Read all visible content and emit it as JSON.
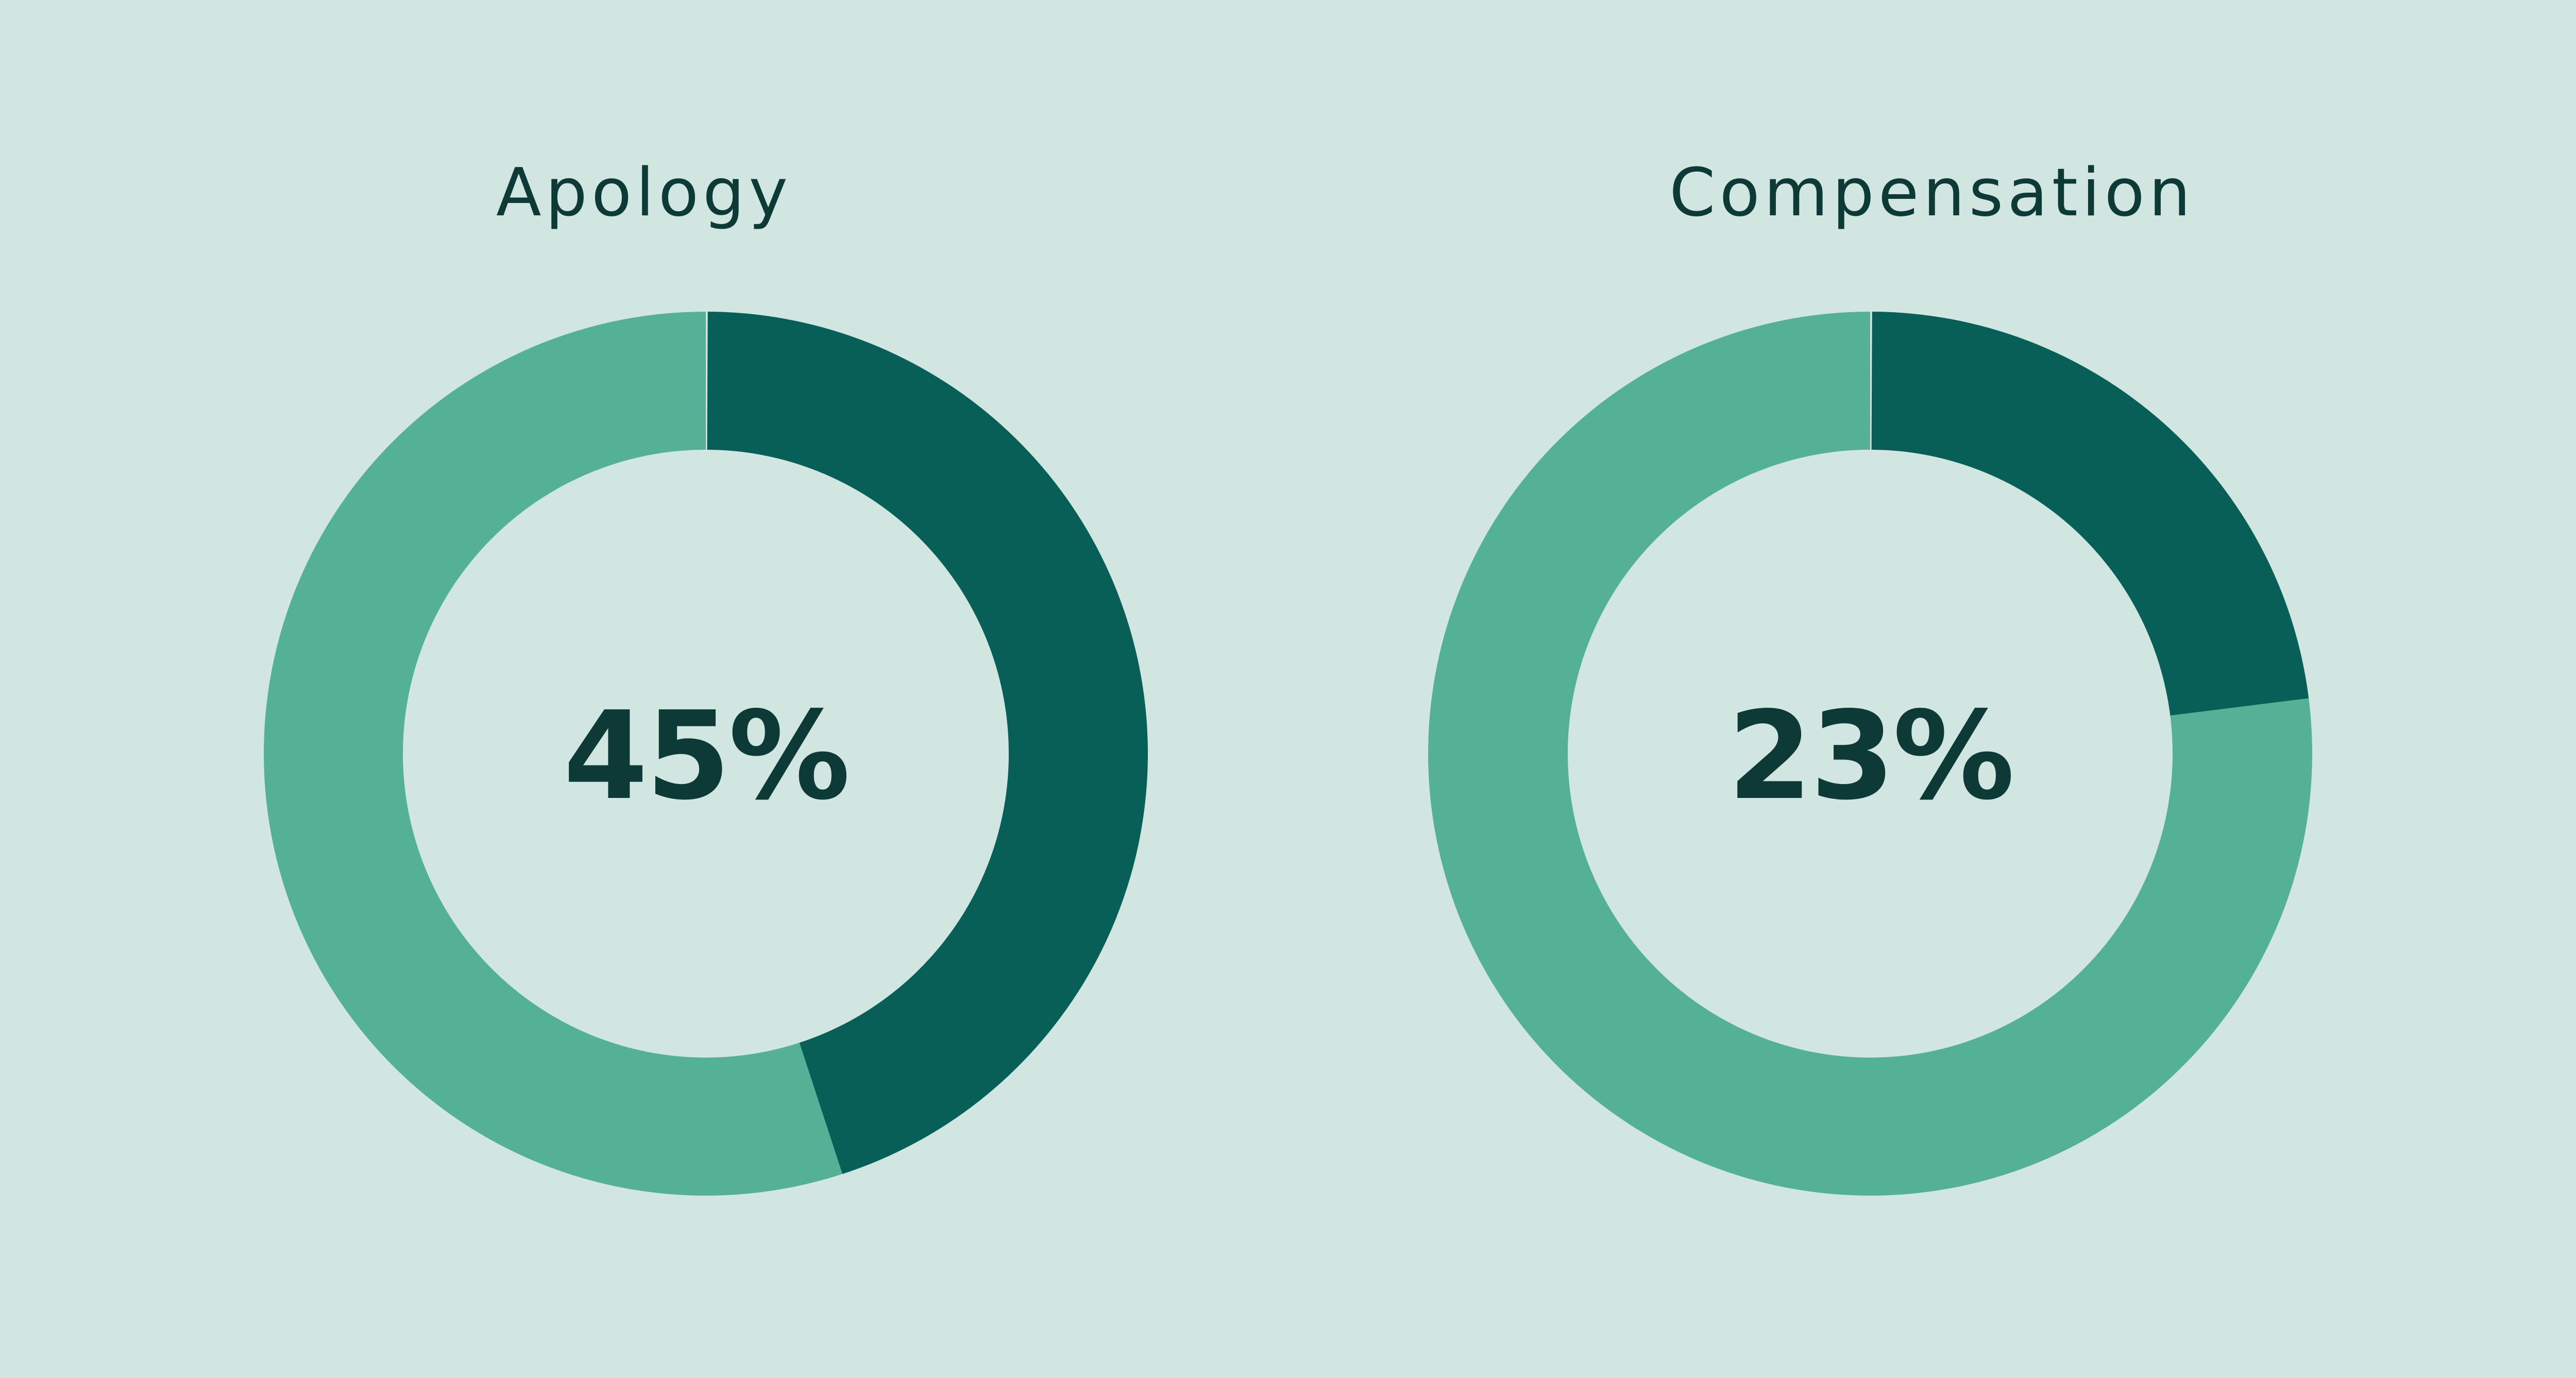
{
  "colors": {
    "background": "#d2e6e1",
    "highlight": "#085f57",
    "remainder": "#54b196",
    "text": "#0d3a36"
  },
  "chart_data": [
    {
      "type": "pie",
      "title": "Apology",
      "center_label": "45%",
      "values": [
        45,
        55
      ],
      "highlight_value": 45
    },
    {
      "type": "pie",
      "title": "Compensation",
      "center_label": "23%",
      "values": [
        23,
        77
      ],
      "highlight_value": 23
    }
  ]
}
